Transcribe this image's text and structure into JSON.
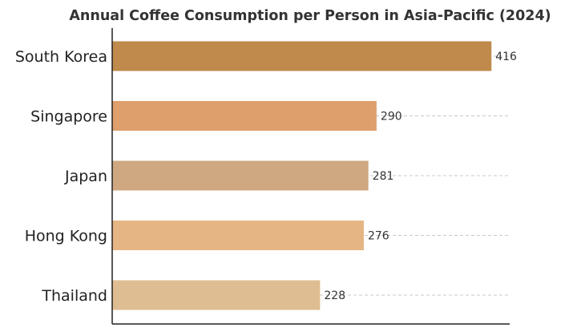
{
  "chart_data": {
    "type": "bar",
    "orientation": "horizontal",
    "title": "Annual Coffee Consumption per Person in Asia-Pacific (2024)",
    "xlabel": "",
    "ylabel": "",
    "categories": [
      "South Korea",
      "Singapore",
      "Japan",
      "Hong Kong",
      "Thailand"
    ],
    "values": [
      416,
      290,
      281,
      276,
      228
    ],
    "colors": [
      "#bf8a4b",
      "#de9f6c",
      "#cfa882",
      "#e6b584",
      "#dfbd93"
    ],
    "xlim": [
      0,
      436
    ],
    "grid": "vertical-dashed",
    "legend": "none"
  }
}
